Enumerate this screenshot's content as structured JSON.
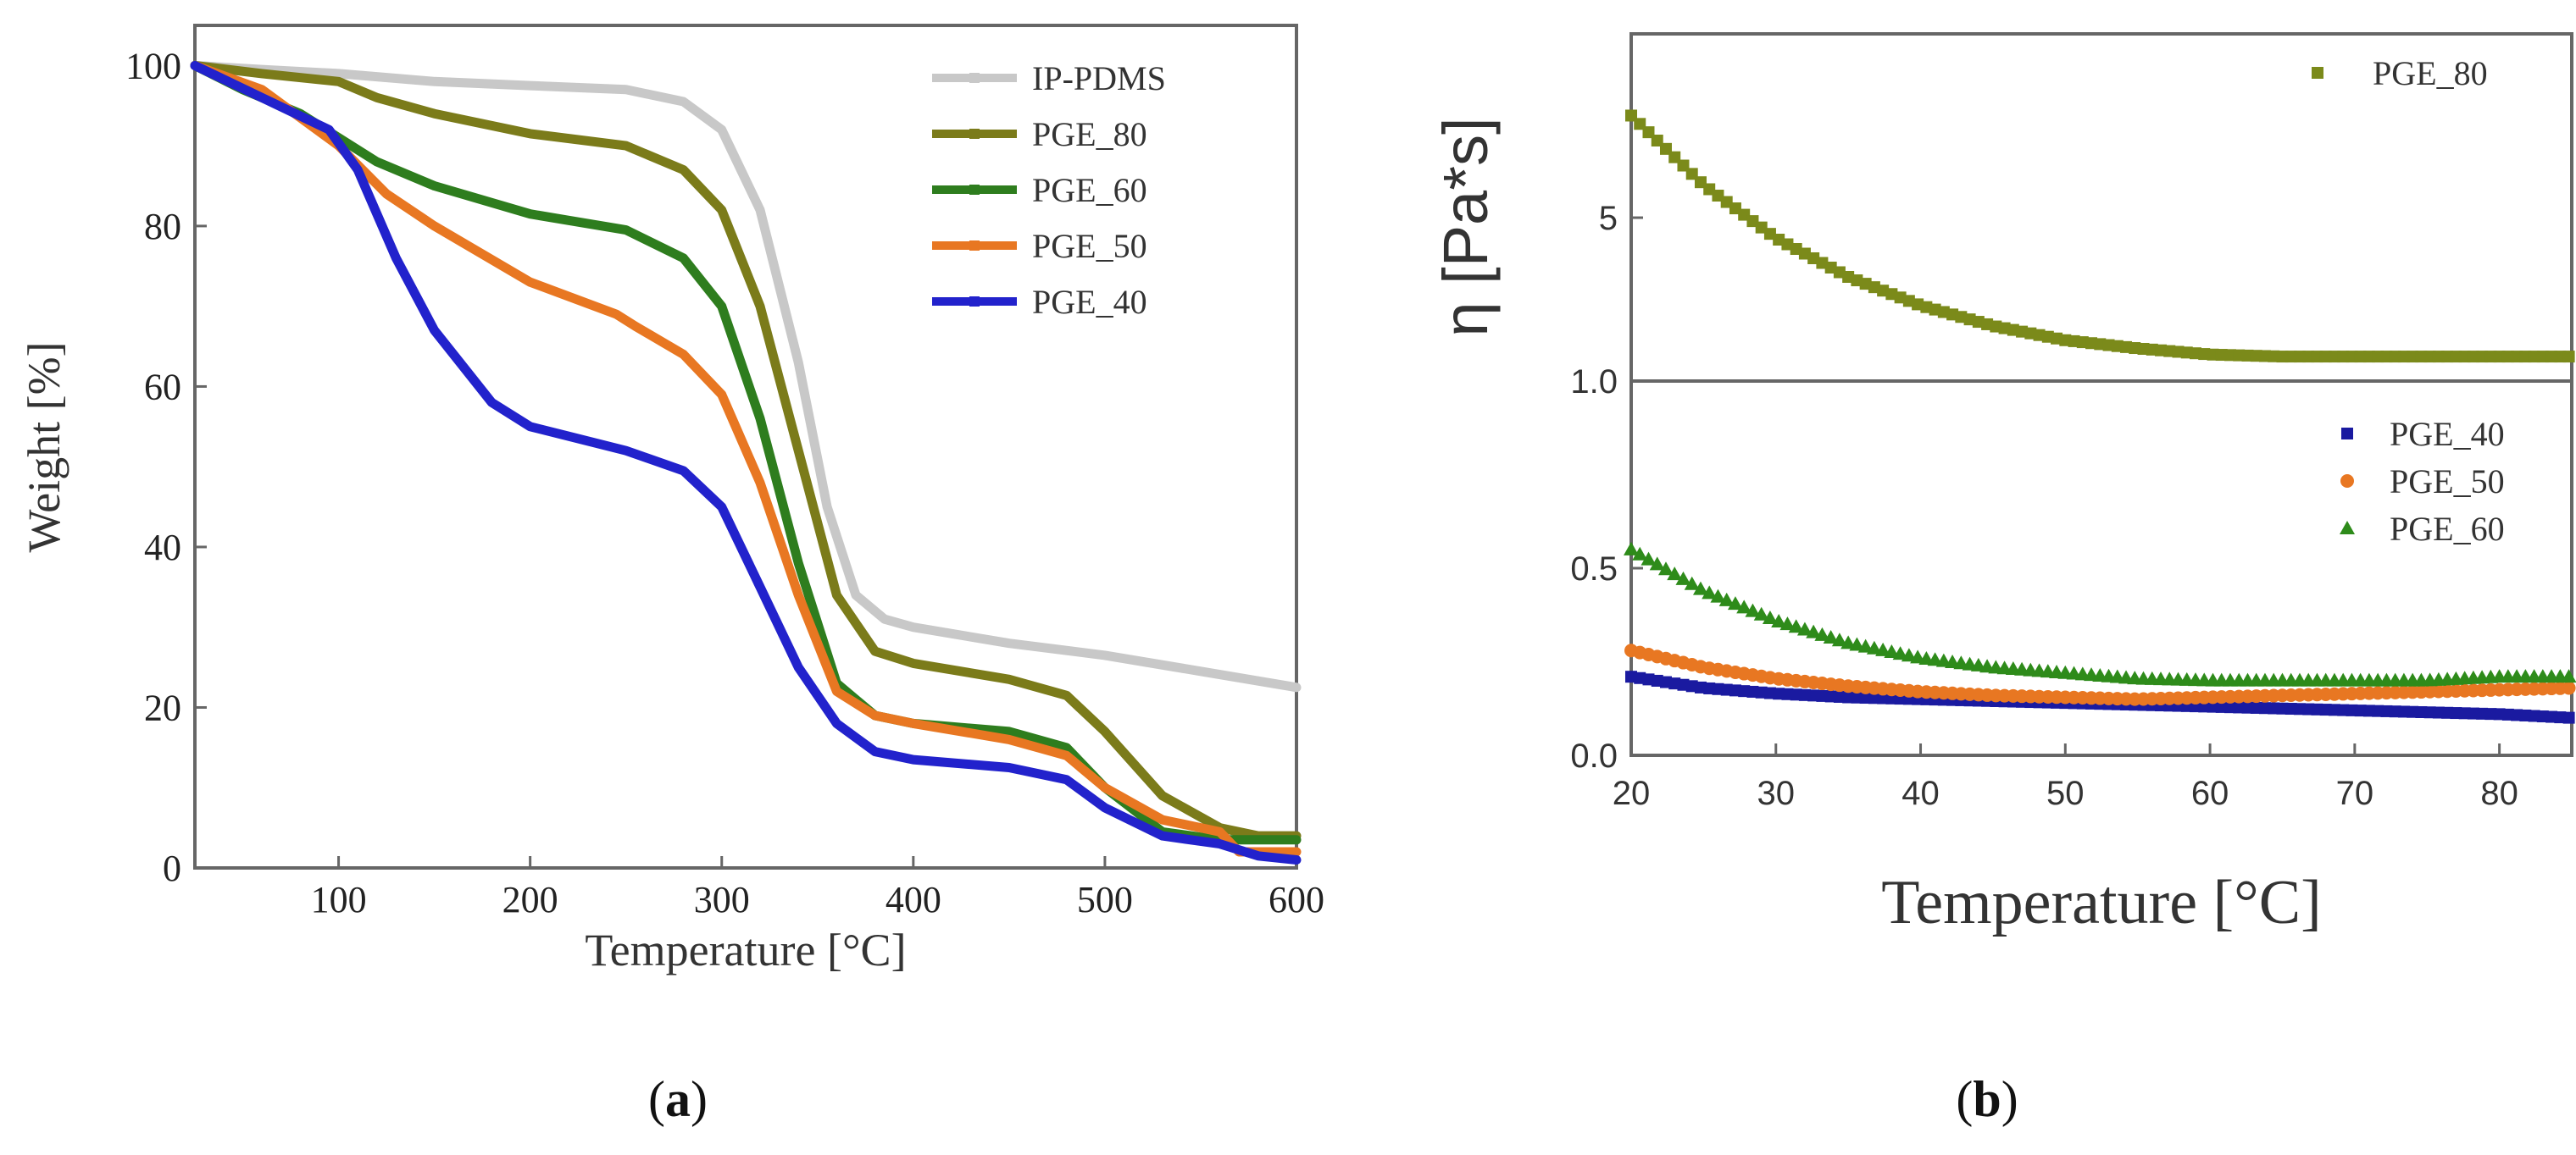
{
  "chart_data": [
    {
      "id": "a",
      "type": "line",
      "panel_label": "(a)",
      "panel_label_bold": "a",
      "title": "",
      "xlabel": "Temperature [°C]",
      "ylabel": "Weight [%]",
      "xlim": [
        25,
        600
      ],
      "ylim": [
        0,
        105
      ],
      "xticks": [
        100,
        200,
        300,
        400,
        500,
        600
      ],
      "yticks": [
        0,
        20,
        40,
        60,
        80,
        100
      ],
      "legend_position": "top-right",
      "series": [
        {
          "name": "IP-PDMS",
          "color": "#c8c8c8",
          "x": [
            25,
            60,
            100,
            150,
            200,
            250,
            280,
            300,
            320,
            340,
            355,
            370,
            385,
            400,
            450,
            500,
            550,
            600
          ],
          "y": [
            100,
            99.5,
            99,
            98,
            97.5,
            97,
            95.5,
            92,
            82,
            63,
            45,
            34,
            31,
            30,
            28,
            26.5,
            24.5,
            22.5
          ]
        },
        {
          "name": "PGE_80",
          "color": "#7b7b1a",
          "x": [
            25,
            60,
            100,
            120,
            150,
            200,
            250,
            280,
            300,
            320,
            340,
            360,
            380,
            400,
            450,
            480,
            500,
            530,
            560,
            580,
            600
          ],
          "y": [
            100,
            99,
            98,
            96,
            94,
            91.5,
            90,
            87,
            82,
            70,
            52,
            34,
            27,
            25.5,
            23.5,
            21.5,
            17,
            9,
            5,
            4,
            4
          ]
        },
        {
          "name": "PGE_60",
          "color": "#2e7d1e",
          "x": [
            25,
            50,
            80,
            100,
            120,
            150,
            200,
            250,
            280,
            300,
            320,
            340,
            360,
            380,
            400,
            450,
            480,
            500,
            530,
            560,
            600
          ],
          "y": [
            100,
            97,
            94,
            91,
            88,
            85,
            81.5,
            79.5,
            76,
            70,
            56,
            38,
            23,
            19,
            18,
            17,
            15,
            10,
            4.5,
            3.5,
            3.5
          ]
        },
        {
          "name": "PGE_50",
          "color": "#e87722",
          "x": [
            25,
            60,
            100,
            125,
            150,
            200,
            245,
            255,
            280,
            300,
            320,
            340,
            360,
            380,
            400,
            450,
            480,
            500,
            530,
            560,
            570,
            600
          ],
          "y": [
            100,
            97,
            90,
            84,
            80,
            73,
            69,
            67.5,
            64,
            59,
            48,
            34,
            22,
            19,
            18,
            16,
            14,
            10,
            6,
            4.5,
            2,
            2
          ]
        },
        {
          "name": "PGE_40",
          "color": "#2222cc",
          "x": [
            25,
            60,
            95,
            110,
            130,
            150,
            180,
            200,
            250,
            280,
            300,
            320,
            340,
            360,
            380,
            400,
            450,
            480,
            500,
            530,
            560,
            580,
            600
          ],
          "y": [
            100,
            96,
            92,
            87,
            76,
            67,
            58,
            55,
            52,
            49.5,
            45,
            35,
            25,
            18,
            14.5,
            13.5,
            12.5,
            11,
            7.5,
            4,
            3,
            1.5,
            1
          ]
        }
      ]
    },
    {
      "id": "b",
      "type": "scatter",
      "panel_label": "(b)",
      "panel_label_bold": "b",
      "title": "",
      "xlabel": "Temperature [°C]",
      "ylabel": "η [Pa*s]",
      "xlim": [
        20,
        85
      ],
      "xticks": [
        20,
        30,
        40,
        50,
        60,
        70,
        80
      ],
      "upper_panel": {
        "ylim": [
          1.0,
          9.5
        ],
        "yticks": [
          "5",
          "1.0"
        ],
        "ytick_values": [
          5,
          1.0
        ],
        "legend_position": "top-right",
        "series": [
          {
            "name": "PGE_80",
            "color": "#7b8a1a",
            "marker": "square",
            "x": [
              20,
              25,
              30,
              35,
              40,
              45,
              50,
              55,
              60,
              65,
              70,
              75,
              80,
              85
            ],
            "y": [
              7.5,
              5.8,
              4.5,
              3.55,
              2.85,
              2.35,
              2.0,
              1.8,
              1.65,
              1.6,
              1.6,
              1.6,
              1.6,
              1.6
            ]
          }
        ]
      },
      "lower_panel": {
        "ylim": [
          0.0,
          1.0
        ],
        "yticks": [
          "0.0",
          "0.5"
        ],
        "ytick_values": [
          0.0,
          0.5
        ],
        "legend_position": "top-right",
        "series": [
          {
            "name": "PGE_40",
            "color": "#1a1aa0",
            "marker": "square",
            "x": [
              20,
              25,
              30,
              35,
              40,
              45,
              50,
              55,
              60,
              65,
              70,
              75,
              80,
              85
            ],
            "y": [
              0.21,
              0.18,
              0.165,
              0.155,
              0.15,
              0.145,
              0.14,
              0.135,
              0.13,
              0.125,
              0.12,
              0.115,
              0.11,
              0.1
            ]
          },
          {
            "name": "PGE_50",
            "color": "#e87722",
            "marker": "circle",
            "x": [
              20,
              25,
              30,
              35,
              40,
              45,
              50,
              55,
              60,
              65,
              70,
              75,
              80,
              85
            ],
            "y": [
              0.28,
              0.235,
              0.205,
              0.185,
              0.17,
              0.16,
              0.155,
              0.15,
              0.155,
              0.16,
              0.165,
              0.17,
              0.175,
              0.18
            ]
          },
          {
            "name": "PGE_60",
            "color": "#2e8b1a",
            "marker": "triangle",
            "x": [
              20,
              25,
              30,
              35,
              40,
              45,
              50,
              55,
              60,
              65,
              70,
              75,
              80,
              85
            ],
            "y": [
              0.55,
              0.44,
              0.36,
              0.3,
              0.26,
              0.235,
              0.22,
              0.205,
              0.2,
              0.2,
              0.2,
              0.2,
              0.21,
              0.21
            ]
          }
        ]
      }
    }
  ]
}
